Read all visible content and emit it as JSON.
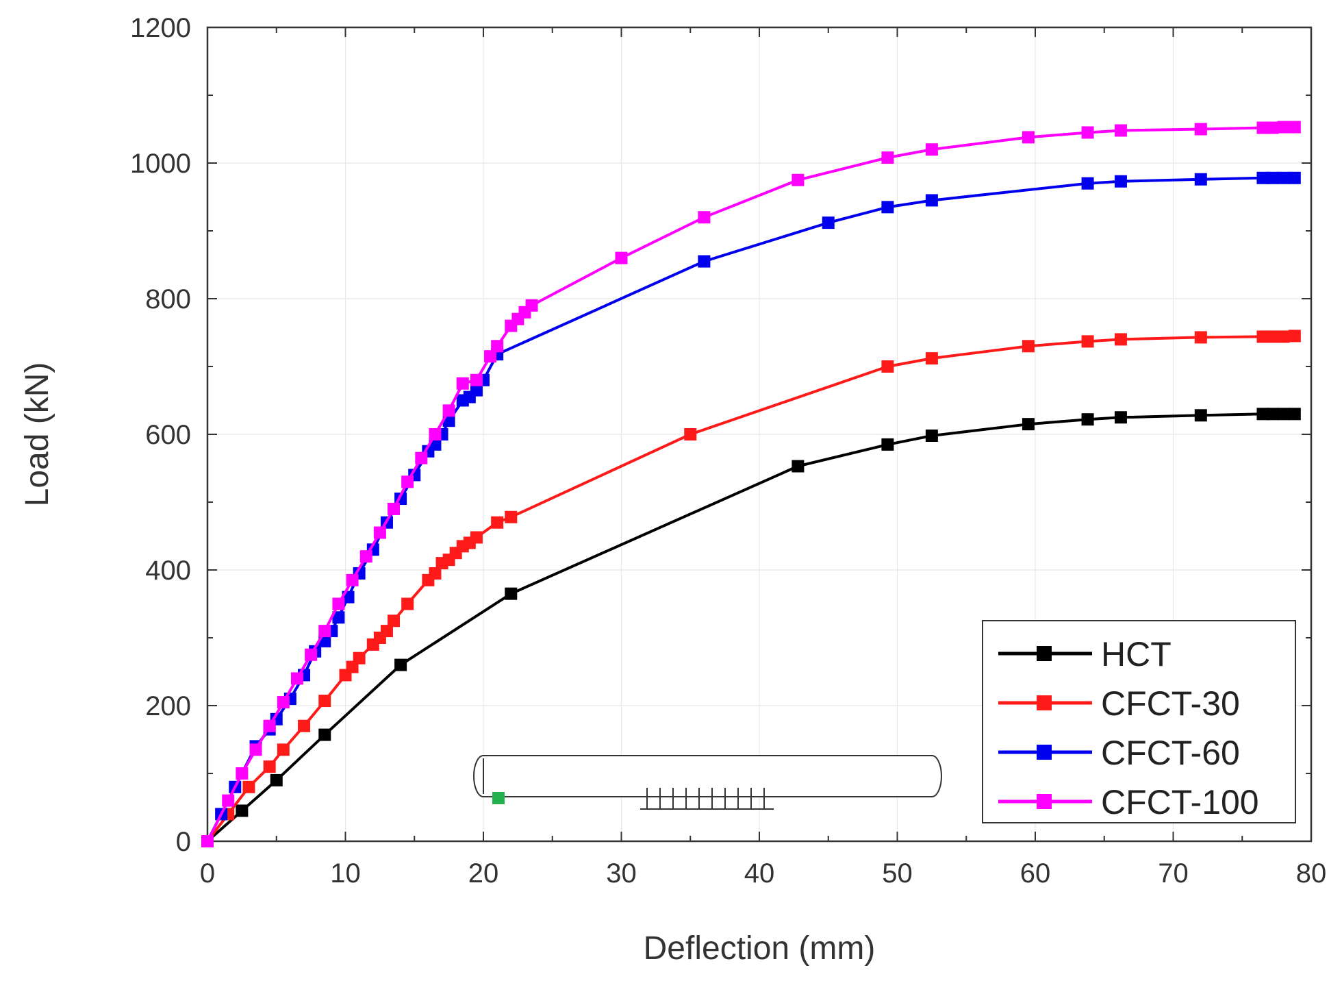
{
  "chart_data": {
    "type": "line",
    "title": "",
    "xlabel": "Deflection (mm)",
    "ylabel": "Load (kN)",
    "xlim": [
      0,
      80
    ],
    "ylim": [
      0,
      1200
    ],
    "xticks": [
      0,
      10,
      20,
      30,
      40,
      50,
      60,
      70,
      80
    ],
    "yticks": [
      0,
      200,
      400,
      600,
      800,
      1000,
      1200
    ],
    "grid": true,
    "legend_position": "bottom-right",
    "series": [
      {
        "name": "HCT",
        "color": "#000000",
        "marker": "square",
        "x": [
          0,
          2.5,
          5,
          8.5,
          14,
          22,
          42.8,
          49.3,
          52.5,
          59.5,
          63.8,
          66.2,
          72,
          76.5,
          77.2,
          78,
          78.8
        ],
        "y": [
          0,
          45,
          90,
          157,
          260,
          365,
          553,
          585,
          598,
          615,
          622,
          625,
          628,
          630,
          630,
          630,
          630
        ]
      },
      {
        "name": "CFCT-30",
        "color": "#ff1a1a",
        "marker": "square",
        "x": [
          0,
          1.5,
          3,
          4.5,
          5.5,
          7,
          8.5,
          10,
          10.5,
          11,
          12,
          12.5,
          13,
          13.5,
          14.5,
          16,
          16.5,
          17,
          17.5,
          18,
          18.5,
          19,
          19.5,
          21,
          22,
          35,
          49.3,
          52.5,
          59.5,
          63.8,
          66.2,
          72,
          76.5,
          77.2,
          78,
          78.8
        ],
        "y": [
          0,
          40,
          80,
          110,
          135,
          170,
          207,
          245,
          257,
          270,
          290,
          300,
          310,
          325,
          350,
          385,
          395,
          410,
          415,
          425,
          435,
          440,
          448,
          470,
          478,
          600,
          700,
          712,
          730,
          737,
          740,
          743,
          744,
          744,
          744,
          745
        ]
      },
      {
        "name": "CFCT-60",
        "color": "#0000ee",
        "marker": "square",
        "x": [
          0,
          1,
          2,
          3.5,
          4.5,
          5,
          6,
          7,
          7.8,
          8.5,
          9,
          9.5,
          10.2,
          11,
          12,
          13,
          14,
          15,
          16,
          16.5,
          17,
          17.5,
          18.5,
          19,
          19.5,
          20,
          21,
          36,
          45,
          49.3,
          52.5,
          63.8,
          66.2,
          72,
          76.5,
          77.2,
          78,
          78.8
        ],
        "y": [
          0,
          40,
          80,
          140,
          165,
          180,
          210,
          245,
          280,
          295,
          310,
          330,
          360,
          395,
          430,
          470,
          505,
          540,
          575,
          585,
          600,
          620,
          650,
          655,
          665,
          680,
          718,
          855,
          912,
          935,
          945,
          970,
          973,
          976,
          978,
          978,
          978,
          978
        ]
      },
      {
        "name": "CFCT-100",
        "color": "#ff00ff",
        "marker": "square",
        "x": [
          0,
          1.5,
          2.5,
          3.5,
          4.5,
          5.5,
          6.5,
          7.5,
          8.5,
          9.5,
          10.5,
          11.5,
          12.5,
          13.5,
          14.5,
          15.5,
          16.5,
          17.5,
          18.5,
          19.5,
          20.5,
          21,
          22,
          22.5,
          23,
          23.5,
          30,
          36,
          42.8,
          49.3,
          52.5,
          59.5,
          63.8,
          66.2,
          72,
          76.5,
          77.2,
          78,
          78.8
        ],
        "y": [
          0,
          60,
          100,
          135,
          170,
          205,
          240,
          275,
          310,
          350,
          385,
          420,
          455,
          490,
          530,
          565,
          600,
          635,
          675,
          680,
          715,
          730,
          760,
          770,
          780,
          790,
          860,
          920,
          975,
          1008,
          1020,
          1038,
          1045,
          1048,
          1050,
          1052,
          1052,
          1053,
          1053
        ]
      }
    ]
  },
  "inset": {
    "description_label": "",
    "marker_color": "#22b14c",
    "tick_count": 10
  }
}
